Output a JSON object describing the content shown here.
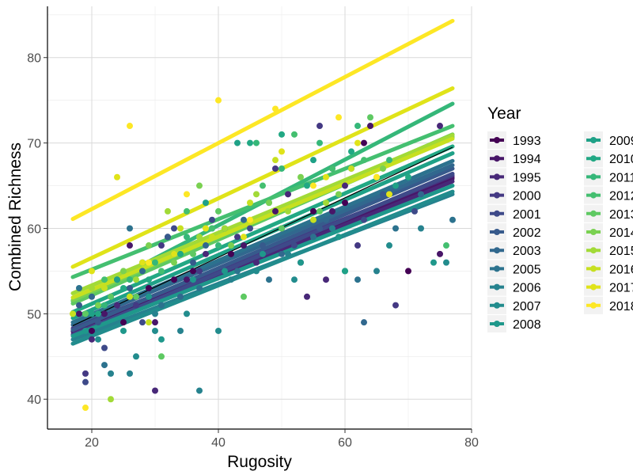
{
  "chart_data": {
    "type": "scatter",
    "xlabel": "Rugosity",
    "ylabel": "Combined Richness",
    "xlim": [
      13,
      80
    ],
    "ylim": [
      36.5,
      86
    ],
    "x_ticks": [
      "20",
      "40",
      "60",
      "80"
    ],
    "y_ticks": [
      "40",
      "50",
      "60",
      "70",
      "80"
    ],
    "grid": true,
    "legend": {
      "title": "Year",
      "placement": "right",
      "columns": 2
    },
    "overall_fit": {
      "x": [
        17,
        77
      ],
      "y": [
        48.6,
        69.5
      ],
      "color": "#000000"
    },
    "series": [
      {
        "name": "1993",
        "color": "#440154",
        "fit": {
          "x": [
            17,
            77
          ],
          "y": [
            48.0,
            66.0
          ]
        },
        "points": [
          [
            20,
            48
          ],
          [
            25,
            49
          ],
          [
            29,
            53
          ],
          [
            33,
            54
          ],
          [
            36,
            55
          ],
          [
            42,
            57
          ],
          [
            50,
            60
          ],
          [
            55,
            62
          ],
          [
            60,
            63
          ],
          [
            63,
            70
          ],
          [
            70,
            55
          ]
        ]
      },
      {
        "name": "1994",
        "color": "#481668",
        "fit": {
          "x": [
            17,
            77
          ],
          "y": [
            47.9,
            65.8
          ]
        },
        "points": [
          [
            18,
            50
          ],
          [
            22,
            50
          ],
          [
            26,
            58
          ],
          [
            30,
            49
          ],
          [
            35,
            54
          ],
          [
            44,
            58
          ],
          [
            49,
            62
          ],
          [
            53,
            56
          ],
          [
            58,
            62
          ],
          [
            64,
            72
          ],
          [
            75,
            57
          ]
        ]
      },
      {
        "name": "1995",
        "color": "#482878",
        "fit": {
          "x": [
            17,
            77
          ],
          "y": [
            47.6,
            65.5
          ]
        },
        "points": [
          [
            20,
            47
          ],
          [
            24,
            51
          ],
          [
            30,
            41
          ],
          [
            32,
            59
          ],
          [
            38,
            57
          ],
          [
            46,
            56
          ],
          [
            51,
            64
          ],
          [
            54,
            52
          ],
          [
            57,
            54
          ],
          [
            60,
            65
          ],
          [
            75,
            72
          ]
        ]
      },
      {
        "name": "2000",
        "color": "#443983",
        "fit": {
          "x": [
            17,
            77
          ],
          "y": [
            48.3,
            66.2
          ]
        },
        "points": [
          [
            19,
            43
          ],
          [
            23,
            52
          ],
          [
            27,
            51
          ],
          [
            31,
            58
          ],
          [
            37,
            55
          ],
          [
            43,
            59
          ],
          [
            49,
            67
          ],
          [
            56,
            72
          ],
          [
            62,
            58
          ],
          [
            68,
            51
          ]
        ]
      },
      {
        "name": "2001",
        "color": "#3e4a89",
        "fit": {
          "x": [
            17,
            77
          ],
          "y": [
            47.5,
            66.4
          ]
        },
        "points": [
          [
            19,
            42
          ],
          [
            22,
            46
          ],
          [
            28,
            49
          ],
          [
            33,
            60
          ],
          [
            39,
            61
          ],
          [
            45,
            60
          ],
          [
            52,
            58
          ],
          [
            58,
            67
          ],
          [
            63,
            61
          ],
          [
            71,
            62
          ]
        ]
      },
      {
        "name": "2002",
        "color": "#375a8c",
        "fit": {
          "x": [
            17,
            77
          ],
          "y": [
            48.1,
            67.0
          ]
        },
        "points": [
          [
            18,
            51
          ],
          [
            21,
            49
          ],
          [
            26,
            53
          ],
          [
            32,
            59
          ],
          [
            36,
            56
          ],
          [
            41,
            60
          ],
          [
            47,
            58
          ],
          [
            56,
            60
          ],
          [
            61,
            67
          ],
          [
            66,
            64
          ]
        ]
      },
      {
        "name": "2003",
        "color": "#31688e",
        "fit": {
          "x": [
            17,
            77
          ],
          "y": [
            48.7,
            67.4
          ]
        },
        "points": [
          [
            20,
            52
          ],
          [
            24,
            54
          ],
          [
            28,
            55
          ],
          [
            34,
            52
          ],
          [
            38,
            58
          ],
          [
            44,
            61
          ],
          [
            50,
            57
          ],
          [
            57,
            61
          ],
          [
            63,
            49
          ],
          [
            72,
            64
          ]
        ]
      },
      {
        "name": "2005",
        "color": "#2c728e",
        "fit": {
          "x": [
            17,
            77
          ],
          "y": [
            49.0,
            67.9
          ]
        },
        "points": [
          [
            18,
            53
          ],
          [
            22,
            44
          ],
          [
            26,
            60
          ],
          [
            31,
            51
          ],
          [
            37,
            53
          ],
          [
            43,
            55
          ],
          [
            48,
            54
          ],
          [
            55,
            59
          ],
          [
            62,
            54
          ],
          [
            68,
            60
          ],
          [
            77,
            61
          ]
        ]
      },
      {
        "name": "2006",
        "color": "#26828e",
        "fit": {
          "x": [
            17,
            77
          ],
          "y": [
            47.0,
            64.0
          ]
        },
        "points": [
          [
            23,
            43
          ],
          [
            26,
            43
          ],
          [
            30,
            50
          ],
          [
            34,
            48
          ],
          [
            37,
            41
          ],
          [
            42,
            54
          ],
          [
            51,
            57
          ],
          [
            58,
            60
          ],
          [
            65,
            55
          ],
          [
            72,
            60
          ]
        ]
      },
      {
        "name": "2007",
        "color": "#228c8d",
        "fit": {
          "x": [
            17,
            77
          ],
          "y": [
            46.5,
            64.3
          ]
        },
        "points": [
          [
            21,
            47
          ],
          [
            27,
            45
          ],
          [
            30,
            48
          ],
          [
            35,
            50
          ],
          [
            40,
            48
          ],
          [
            46,
            55
          ],
          [
            52,
            54
          ],
          [
            60,
            55
          ],
          [
            67,
            58
          ],
          [
            76,
            56
          ]
        ]
      },
      {
        "name": "2008",
        "color": "#1f988b",
        "fit": {
          "x": [
            17,
            77
          ],
          "y": [
            47.4,
            65.0
          ]
        },
        "points": [
          [
            19,
            48
          ],
          [
            25,
            48
          ],
          [
            29,
            52
          ],
          [
            31,
            47
          ],
          [
            36,
            54
          ],
          [
            41,
            55
          ],
          [
            47,
            57
          ],
          [
            53,
            56
          ],
          [
            59,
            59
          ],
          [
            74,
            56
          ]
        ]
      },
      {
        "name": "2009",
        "color": "#1fa187",
        "fit": {
          "x": [
            17,
            77
          ],
          "y": [
            49.5,
            68.8
          ]
        },
        "points": [
          [
            20,
            50
          ],
          [
            24,
            54
          ],
          [
            28,
            56
          ],
          [
            33,
            57
          ],
          [
            38,
            63
          ],
          [
            43,
            70
          ],
          [
            48,
            63
          ],
          [
            55,
            68
          ],
          [
            60,
            55
          ],
          [
            68,
            65
          ]
        ]
      },
      {
        "name": "2010",
        "color": "#22a884",
        "fit": {
          "x": [
            17,
            77
          ],
          "y": [
            50.2,
            69.6
          ]
        },
        "points": [
          [
            21,
            50
          ],
          [
            25,
            53
          ],
          [
            29,
            54
          ],
          [
            34,
            57
          ],
          [
            39,
            60
          ],
          [
            45,
            70
          ],
          [
            50,
            71
          ],
          [
            54,
            65
          ],
          [
            61,
            69
          ],
          [
            70,
            66
          ]
        ]
      },
      {
        "name": "2011",
        "color": "#35b779",
        "fit": {
          "x": [
            17,
            77
          ],
          "y": [
            51.5,
            74.6
          ]
        },
        "points": [
          [
            22,
            51
          ],
          [
            26,
            54
          ],
          [
            30,
            56
          ],
          [
            35,
            59
          ],
          [
            40,
            58
          ],
          [
            46,
            70
          ],
          [
            50,
            67
          ],
          [
            56,
            70
          ],
          [
            62,
            72
          ],
          [
            67,
            68
          ]
        ]
      },
      {
        "name": "2012",
        "color": "#44bf70",
        "fit": {
          "x": [
            17,
            77
          ],
          "y": [
            54.3,
            72.0
          ]
        },
        "points": [
          [
            22,
            54
          ],
          [
            26,
            52
          ],
          [
            31,
            55
          ],
          [
            35,
            62
          ],
          [
            39,
            60
          ],
          [
            47,
            65
          ],
          [
            52,
            71
          ],
          [
            58,
            67
          ],
          [
            63,
            68
          ],
          [
            76,
            58
          ]
        ]
      },
      {
        "name": "2013",
        "color": "#5ec962",
        "fit": {
          "x": [
            17,
            77
          ],
          "y": [
            51.2,
            70.7
          ]
        },
        "points": [
          [
            19,
            50
          ],
          [
            23,
            52
          ],
          [
            27,
            52
          ],
          [
            31,
            45
          ],
          [
            36,
            57
          ],
          [
            40,
            62
          ],
          [
            44,
            52
          ],
          [
            50,
            60
          ],
          [
            56,
            62
          ],
          [
            64,
            73
          ]
        ]
      },
      {
        "name": "2014",
        "color": "#7ad151",
        "fit": {
          "x": [
            17,
            77
          ],
          "y": [
            51.6,
            71.0
          ]
        },
        "points": [
          [
            21,
            51
          ],
          [
            25,
            55
          ],
          [
            29,
            58
          ],
          [
            33,
            56
          ],
          [
            37,
            65
          ],
          [
            42,
            58
          ],
          [
            48,
            63
          ],
          [
            53,
            66
          ],
          [
            59,
            64
          ],
          [
            66,
            67
          ]
        ]
      },
      {
        "name": "2015",
        "color": "#a2da37",
        "fit": {
          "x": [
            17,
            77
          ],
          "y": [
            52.4,
            70.9
          ]
        },
        "points": [
          [
            20,
            53
          ],
          [
            23,
            40
          ],
          [
            27,
            54
          ],
          [
            32,
            62
          ],
          [
            37,
            59
          ],
          [
            41,
            60
          ],
          [
            46,
            64
          ],
          [
            51,
            62
          ],
          [
            57,
            63
          ],
          [
            65,
            66
          ]
        ]
      },
      {
        "name": "2016",
        "color": "#c7e020",
        "fit": {
          "x": [
            17,
            77
          ],
          "y": [
            51.9,
            70.5
          ]
        },
        "points": [
          [
            17,
            50
          ],
          [
            22,
            53
          ],
          [
            26,
            52
          ],
          [
            29,
            49
          ],
          [
            34,
            60
          ],
          [
            39,
            59
          ],
          [
            45,
            63
          ],
          [
            49,
            68
          ],
          [
            55,
            61
          ],
          [
            61,
            67
          ]
        ]
      },
      {
        "name": "2017",
        "color": "#e0e319",
        "fit": {
          "x": [
            17,
            77
          ],
          "y": [
            55.5,
            76.4
          ]
        },
        "points": [
          [
            20,
            55
          ],
          [
            24,
            66
          ],
          [
            28,
            56
          ],
          [
            33,
            57
          ],
          [
            38,
            60
          ],
          [
            44,
            59
          ],
          [
            50,
            69
          ],
          [
            57,
            66
          ],
          [
            62,
            70
          ],
          [
            67,
            64
          ]
        ]
      },
      {
        "name": "2018",
        "color": "#fde725",
        "fit": {
          "x": [
            17,
            77
          ],
          "y": [
            61.1,
            84.3
          ]
        },
        "points": [
          [
            19,
            39
          ],
          [
            26,
            72
          ],
          [
            29,
            56
          ],
          [
            35,
            64
          ],
          [
            40,
            75
          ],
          [
            45,
            61
          ],
          [
            49,
            74
          ],
          [
            55,
            65
          ],
          [
            59,
            73
          ],
          [
            65,
            66
          ]
        ]
      }
    ]
  }
}
